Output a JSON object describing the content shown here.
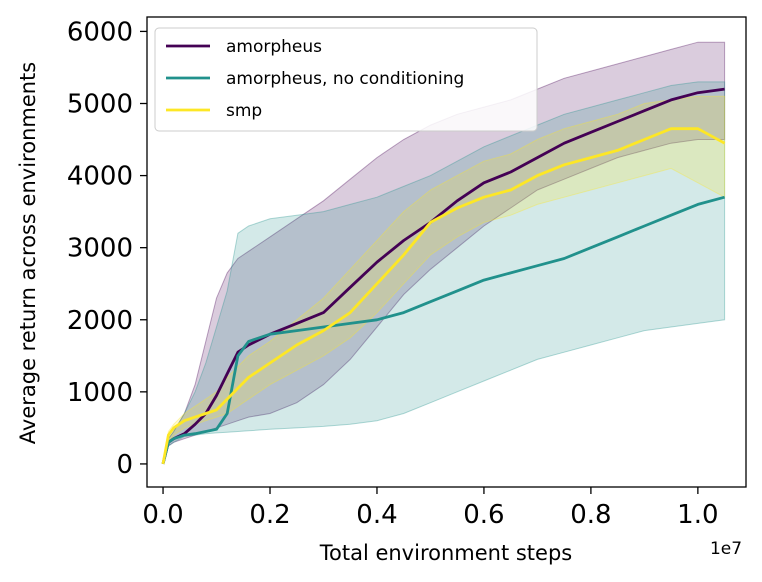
{
  "chart_data": {
    "type": "line",
    "title": "",
    "xlabel": "Total environment steps",
    "ylabel": "Average return across environments",
    "x_offset_label": "1e7",
    "xlim": [
      -0.03,
      1.09
    ],
    "ylim": [
      -320,
      6200
    ],
    "xticks": [
      0.0,
      0.2,
      0.4,
      0.6,
      0.8,
      1.0
    ],
    "xtick_labels": [
      "0.0",
      "0.2",
      "0.4",
      "0.6",
      "0.8",
      "1.0"
    ],
    "yticks": [
      0,
      1000,
      2000,
      3000,
      4000,
      5000,
      6000
    ],
    "ytick_labels": [
      "0",
      "1000",
      "2000",
      "3000",
      "4000",
      "5000",
      "6000"
    ],
    "grid": false,
    "legend_position": "top-left",
    "x": [
      0.0,
      0.01,
      0.02,
      0.04,
      0.06,
      0.08,
      0.1,
      0.12,
      0.14,
      0.16,
      0.2,
      0.25,
      0.3,
      0.35,
      0.4,
      0.45,
      0.5,
      0.55,
      0.6,
      0.65,
      0.7,
      0.75,
      0.8,
      0.85,
      0.9,
      0.95,
      1.0,
      1.05
    ],
    "series": [
      {
        "name": "amorpheus",
        "color": "#440154",
        "values": [
          0,
          300,
          350,
          420,
          550,
          700,
          950,
          1250,
          1550,
          1650,
          1800,
          1950,
          2100,
          2450,
          2800,
          3100,
          3350,
          3650,
          3900,
          4050,
          4250,
          4450,
          4600,
          4750,
          4900,
          5050,
          5150,
          5200
        ],
        "upper": [
          0,
          350,
          450,
          700,
          1100,
          1700,
          2300,
          2650,
          2850,
          2950,
          3150,
          3400,
          3650,
          3950,
          4250,
          4500,
          4700,
          4850,
          4950,
          5050,
          5200,
          5350,
          5450,
          5550,
          5650,
          5750,
          5850,
          5850
        ],
        "lower": [
          0,
          250,
          300,
          350,
          400,
          450,
          500,
          550,
          600,
          650,
          700,
          850,
          1100,
          1450,
          1900,
          2350,
          2700,
          3000,
          3300,
          3550,
          3800,
          3950,
          4100,
          4250,
          4350,
          4450,
          4500,
          4500
        ]
      },
      {
        "name": "amorpheus, no conditioning",
        "color": "#21918c",
        "values": [
          0,
          300,
          350,
          400,
          420,
          450,
          480,
          700,
          1500,
          1700,
          1800,
          1850,
          1900,
          1950,
          2000,
          2100,
          2250,
          2400,
          2550,
          2650,
          2750,
          2850,
          3000,
          3150,
          3300,
          3450,
          3600,
          3700
        ],
        "upper": [
          0,
          350,
          450,
          700,
          1000,
          1400,
          1900,
          2400,
          3200,
          3300,
          3400,
          3450,
          3500,
          3600,
          3700,
          3850,
          4000,
          4200,
          4400,
          4550,
          4700,
          4850,
          4950,
          5050,
          5150,
          5250,
          5300,
          5300
        ],
        "lower": [
          0,
          250,
          300,
          380,
          400,
          420,
          430,
          440,
          450,
          460,
          480,
          500,
          520,
          550,
          600,
          700,
          850,
          1000,
          1150,
          1300,
          1450,
          1550,
          1650,
          1750,
          1850,
          1900,
          1950,
          2000
        ]
      },
      {
        "name": "smp",
        "color": "#fde725",
        "values": [
          0,
          400,
          500,
          600,
          650,
          700,
          750,
          900,
          1050,
          1200,
          1400,
          1650,
          1850,
          2100,
          2500,
          2900,
          3350,
          3550,
          3700,
          3800,
          4000,
          4150,
          4250,
          4350,
          4500,
          4650,
          4650,
          4450
        ],
        "upper": [
          0,
          450,
          550,
          700,
          800,
          900,
          1000,
          1200,
          1350,
          1500,
          1700,
          2000,
          2300,
          2700,
          3100,
          3500,
          3800,
          4000,
          4200,
          4300,
          4500,
          4650,
          4750,
          4850,
          5000,
          5050,
          5100,
          5100
        ],
        "lower": [
          0,
          300,
          400,
          500,
          550,
          600,
          650,
          700,
          800,
          900,
          1100,
          1300,
          1500,
          1750,
          2100,
          2500,
          2900,
          3150,
          3350,
          3450,
          3600,
          3700,
          3800,
          3900,
          4000,
          4100,
          3900,
          3700
        ]
      }
    ]
  }
}
